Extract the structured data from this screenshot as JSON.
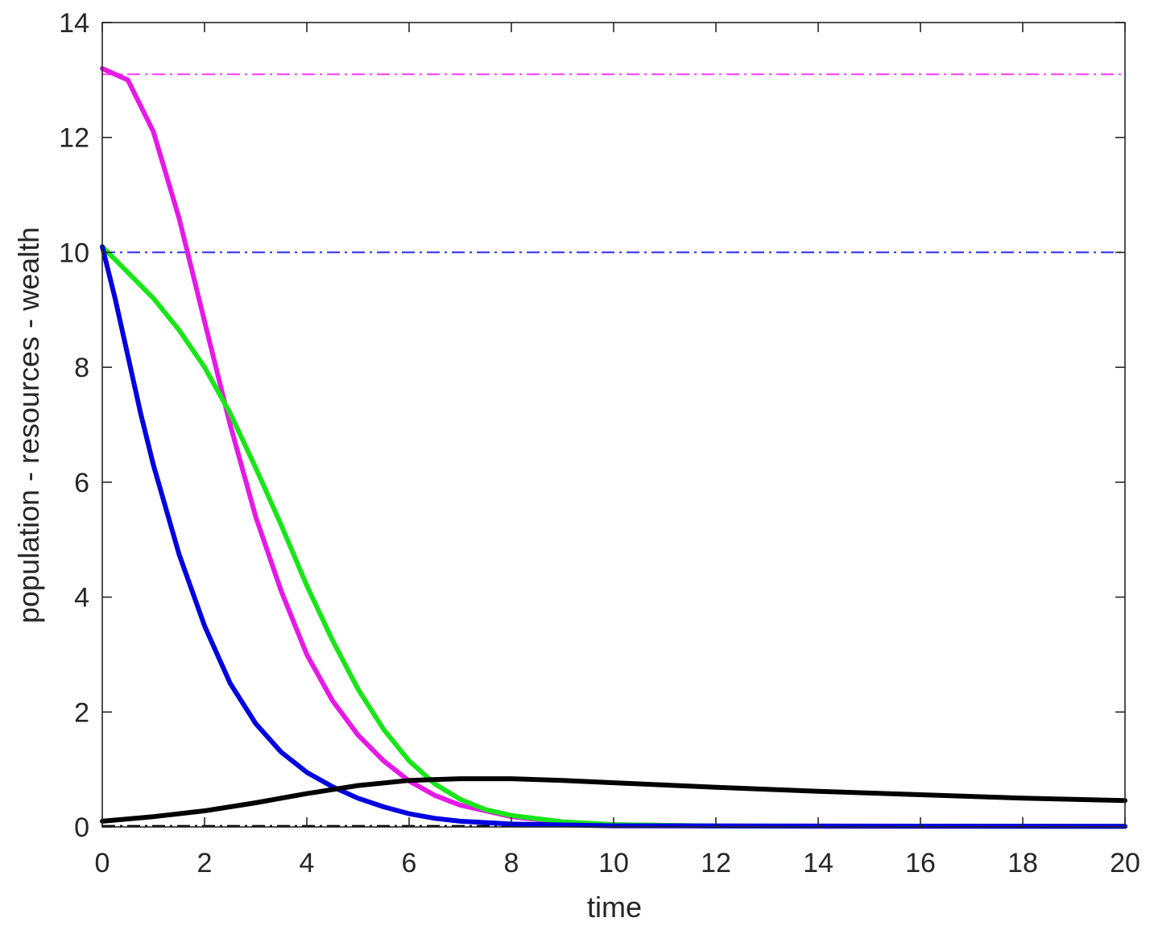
{
  "chart_data": {
    "type": "line",
    "title": "",
    "xlabel": "time",
    "ylabel": "population - resources - wealth",
    "xlim": [
      0,
      20
    ],
    "ylim": [
      0,
      14
    ],
    "xticks": [
      0,
      2,
      4,
      6,
      8,
      10,
      12,
      14,
      16,
      18,
      20
    ],
    "yticks": [
      0,
      2,
      4,
      6,
      8,
      10,
      12,
      14
    ],
    "grid": false,
    "legend": "none",
    "series": [
      {
        "color": "#e619e6",
        "style": "solid",
        "points": [
          [
            0,
            13.2
          ],
          [
            0.5,
            13.0
          ],
          [
            1,
            12.1
          ],
          [
            1.5,
            10.6
          ],
          [
            2,
            8.8
          ],
          [
            2.5,
            7.0
          ],
          [
            3,
            5.4
          ],
          [
            3.5,
            4.1
          ],
          [
            4,
            3.0
          ],
          [
            4.5,
            2.2
          ],
          [
            5,
            1.6
          ],
          [
            5.5,
            1.15
          ],
          [
            6,
            0.8
          ],
          [
            6.5,
            0.55
          ],
          [
            7,
            0.38
          ],
          [
            8,
            0.18
          ],
          [
            9,
            0.08
          ],
          [
            10,
            0.04
          ],
          [
            12,
            0.015
          ],
          [
            14,
            0.01
          ],
          [
            20,
            0.01
          ]
        ]
      },
      {
        "color": "#19e619",
        "style": "solid",
        "points": [
          [
            0,
            10.1
          ],
          [
            0.5,
            9.65
          ],
          [
            1,
            9.2
          ],
          [
            1.5,
            8.65
          ],
          [
            2,
            8.0
          ],
          [
            2.5,
            7.2
          ],
          [
            3,
            6.25
          ],
          [
            3.5,
            5.25
          ],
          [
            4,
            4.2
          ],
          [
            4.5,
            3.25
          ],
          [
            5,
            2.4
          ],
          [
            5.5,
            1.7
          ],
          [
            6,
            1.15
          ],
          [
            6.5,
            0.75
          ],
          [
            7,
            0.48
          ],
          [
            7.5,
            0.3
          ],
          [
            8,
            0.2
          ],
          [
            9,
            0.09
          ],
          [
            10,
            0.04
          ],
          [
            12,
            0.015
          ],
          [
            20,
            0.01
          ]
        ]
      },
      {
        "color": "#0000e0",
        "style": "solid",
        "points": [
          [
            0,
            10.1
          ],
          [
            0.25,
            9.2
          ],
          [
            0.5,
            8.2
          ],
          [
            0.75,
            7.2
          ],
          [
            1,
            6.3
          ],
          [
            1.5,
            4.75
          ],
          [
            2,
            3.5
          ],
          [
            2.5,
            2.5
          ],
          [
            3,
            1.8
          ],
          [
            3.5,
            1.3
          ],
          [
            4,
            0.95
          ],
          [
            4.5,
            0.7
          ],
          [
            5,
            0.5
          ],
          [
            5.5,
            0.35
          ],
          [
            6,
            0.23
          ],
          [
            6.5,
            0.15
          ],
          [
            7,
            0.1
          ],
          [
            8,
            0.05
          ],
          [
            10,
            0.02
          ],
          [
            20,
            0.01
          ]
        ]
      },
      {
        "color": "#000000",
        "style": "solid",
        "points": [
          [
            0,
            0.1
          ],
          [
            1,
            0.18
          ],
          [
            2,
            0.28
          ],
          [
            3,
            0.42
          ],
          [
            4,
            0.58
          ],
          [
            5,
            0.72
          ],
          [
            6,
            0.81
          ],
          [
            7,
            0.84
          ],
          [
            8,
            0.84
          ],
          [
            9,
            0.81
          ],
          [
            10,
            0.77
          ],
          [
            12,
            0.69
          ],
          [
            14,
            0.62
          ],
          [
            16,
            0.56
          ],
          [
            18,
            0.5
          ],
          [
            20,
            0.46
          ]
        ]
      },
      {
        "color": "#ff3cff",
        "style": "dashdot",
        "points": [
          [
            0,
            13.1
          ],
          [
            20,
            13.1
          ]
        ]
      },
      {
        "color": "#2a2af0",
        "style": "dashdot",
        "points": [
          [
            0,
            10.0
          ],
          [
            20,
            10.0
          ]
        ]
      },
      {
        "color": "#000000",
        "style": "dashdot",
        "points": [
          [
            0,
            0.02
          ],
          [
            8,
            0.02
          ]
        ]
      }
    ]
  }
}
